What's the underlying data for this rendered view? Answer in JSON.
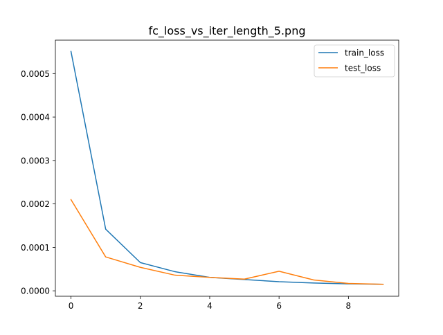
{
  "chart_data": {
    "type": "line",
    "title": "fc_loss_vs_iter_length_5.png",
    "xlabel": "",
    "ylabel": "",
    "x": [
      0,
      1,
      2,
      3,
      4,
      5,
      6,
      7,
      8,
      9
    ],
    "xlim": [
      -0.45,
      9.45
    ],
    "ylim": [
      -1.25e-05,
      0.000577
    ],
    "xticks": [
      0,
      2,
      4,
      6,
      8
    ],
    "xtick_labels": [
      "0",
      "2",
      "4",
      "6",
      "8"
    ],
    "yticks": [
      0.0,
      0.0001,
      0.0002,
      0.0003,
      0.0004,
      0.0005
    ],
    "ytick_labels": [
      "0.0000",
      "0.0001",
      "0.0002",
      "0.0003",
      "0.0004",
      "0.0005"
    ],
    "grid": false,
    "legend_position": "top-right",
    "series": [
      {
        "name": "train_loss",
        "color": "#1f77b4",
        "values": [
          0.000551,
          0.000142,
          6.5e-05,
          4.4e-05,
          3.1e-05,
          2.6e-05,
          2.1e-05,
          1.8e-05,
          1.6e-05,
          1.5e-05
        ]
      },
      {
        "name": "test_loss",
        "color": "#ff7f0e",
        "values": [
          0.00021,
          7.8e-05,
          5.4e-05,
          3.6e-05,
          3.1e-05,
          2.7e-05,
          4.5e-05,
          2.5e-05,
          1.7e-05,
          1.5e-05
        ]
      }
    ]
  }
}
